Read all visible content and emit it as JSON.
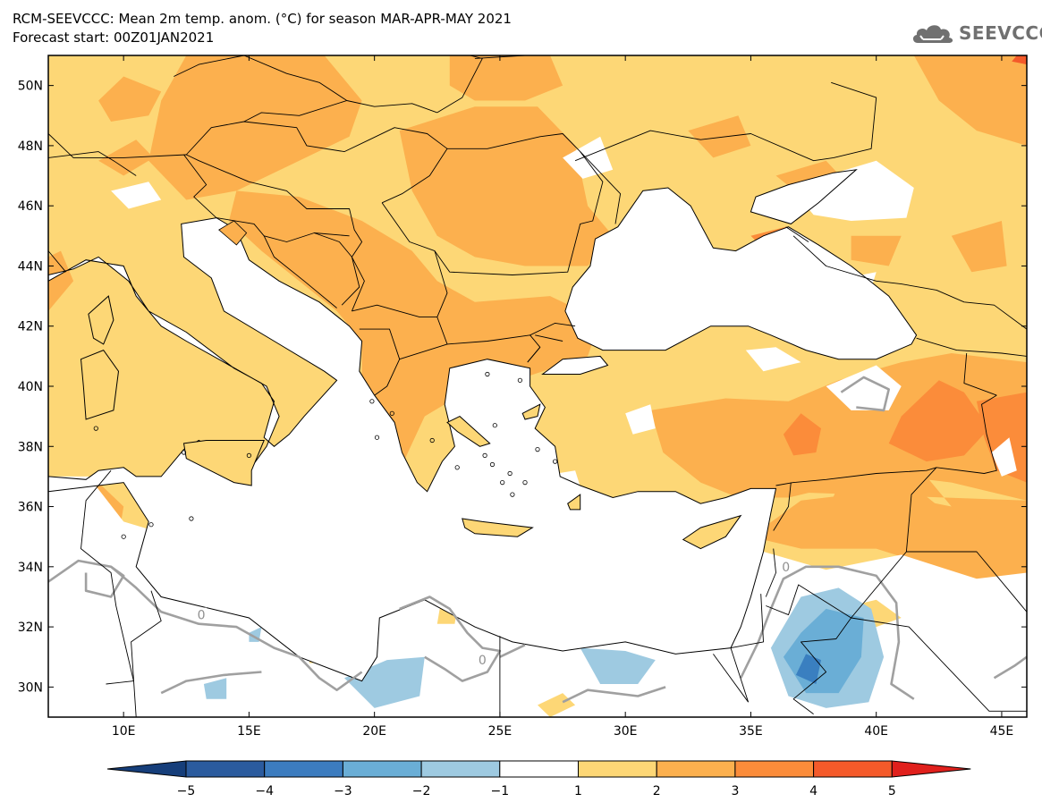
{
  "header": {
    "title": "RCM-SEEVCCC: Mean 2m temp. anom. (°C) for season MAR-APR-MAY 2021",
    "subtitle": "Forecast start: 00Z01JAN2021",
    "logo_text": "SEEVCCC",
    "logo_icon": "cloud-icon"
  },
  "map": {
    "lon_range": [
      7,
      46
    ],
    "lat_range": [
      29,
      51
    ],
    "lon_ticks": [
      {
        "value": 10,
        "label": "10E"
      },
      {
        "value": 15,
        "label": "15E"
      },
      {
        "value": 20,
        "label": "20E"
      },
      {
        "value": 25,
        "label": "25E"
      },
      {
        "value": 30,
        "label": "30E"
      },
      {
        "value": 35,
        "label": "35E"
      },
      {
        "value": 40,
        "label": "40E"
      },
      {
        "value": 45,
        "label": "45E"
      }
    ],
    "lat_ticks": [
      {
        "value": 30,
        "label": "30N"
      },
      {
        "value": 32,
        "label": "32N"
      },
      {
        "value": 34,
        "label": "34N"
      },
      {
        "value": 36,
        "label": "36N"
      },
      {
        "value": 38,
        "label": "38N"
      },
      {
        "value": 40,
        "label": "40N"
      },
      {
        "value": 42,
        "label": "42N"
      },
      {
        "value": 44,
        "label": "44N"
      },
      {
        "value": 46,
        "label": "46N"
      },
      {
        "value": 48,
        "label": "48N"
      },
      {
        "value": 50,
        "label": "50N"
      }
    ],
    "contour_labels": [
      {
        "text": "0",
        "lon": 13.1,
        "lat": 32.4
      },
      {
        "text": "0",
        "lon": 24.3,
        "lat": 30.9
      },
      {
        "text": "0",
        "lon": 36.4,
        "lat": 34.0
      }
    ],
    "colors": {
      "land_1_2": "#fdd776",
      "land_2_3": "#fcb04e",
      "land_3_4": "#fb8c3a",
      "land_4_5": "#f45a2a",
      "neg_1_2": "#9ecae1",
      "neg_2_3": "#6aaed6",
      "neg_3_4": "#3a7fc0",
      "sea": "#ffffff",
      "zero_contour": "#a0a0a0",
      "border": "#000000"
    }
  },
  "colorbar": {
    "bins": [
      {
        "from": -5,
        "to": -4,
        "color": "#2b5b9e"
      },
      {
        "from": -4,
        "to": -3,
        "color": "#3c7cbf"
      },
      {
        "from": -3,
        "to": -2,
        "color": "#6aaed6"
      },
      {
        "from": -2,
        "to": -1,
        "color": "#9ecae1"
      },
      {
        "from": -1,
        "to": 1,
        "color": "#ffffff"
      },
      {
        "from": 1,
        "to": 2,
        "color": "#fdd776"
      },
      {
        "from": 2,
        "to": 3,
        "color": "#fcb04e"
      },
      {
        "from": 3,
        "to": 4,
        "color": "#fb8c3a"
      },
      {
        "from": 4,
        "to": 5,
        "color": "#f45a2a"
      }
    ],
    "low_end_color": "#163e7a",
    "high_end_color": "#e0201c",
    "tick_labels": [
      "−5",
      "−4",
      "−3",
      "−2",
      "−1",
      "1",
      "2",
      "3",
      "4",
      "5"
    ]
  }
}
